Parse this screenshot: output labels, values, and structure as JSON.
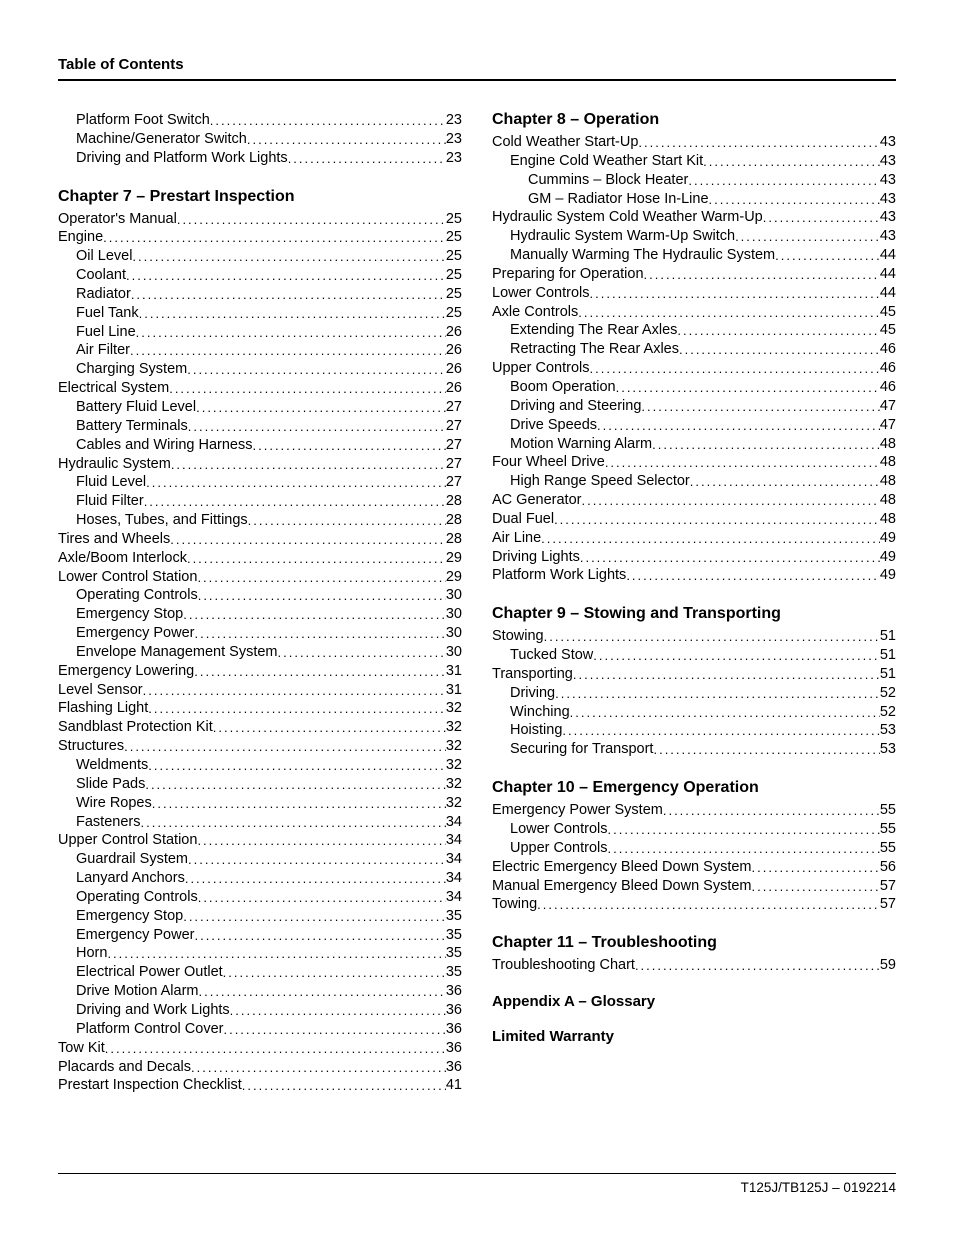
{
  "header": "Table of Contents",
  "footer": "T125J/TB125J – 0192214",
  "left_intro": [
    {
      "label": "Platform Foot Switch",
      "page": "23",
      "indent": 1
    },
    {
      "label": "Machine/Generator Switch",
      "page": "23",
      "indent": 1
    },
    {
      "label": "Driving and Platform Work Lights",
      "page": "23",
      "indent": 1
    }
  ],
  "ch7_title": "Chapter 7 – Prestart Inspection",
  "ch7": [
    {
      "label": "Operator's Manual",
      "page": "25",
      "indent": 0
    },
    {
      "label": "Engine",
      "page": "25",
      "indent": 0
    },
    {
      "label": "Oil Level",
      "page": "25",
      "indent": 1
    },
    {
      "label": "Coolant",
      "page": "25",
      "indent": 1
    },
    {
      "label": "Radiator",
      "page": "25",
      "indent": 1
    },
    {
      "label": "Fuel Tank",
      "page": "25",
      "indent": 1
    },
    {
      "label": "Fuel Line",
      "page": "26",
      "indent": 1
    },
    {
      "label": "Air Filter",
      "page": "26",
      "indent": 1
    },
    {
      "label": "Charging System",
      "page": "26",
      "indent": 1
    },
    {
      "label": "Electrical System",
      "page": "26",
      "indent": 0
    },
    {
      "label": "Battery Fluid Level",
      "page": "27",
      "indent": 1
    },
    {
      "label": "Battery Terminals",
      "page": "27",
      "indent": 1
    },
    {
      "label": "Cables and Wiring Harness",
      "page": "27",
      "indent": 1
    },
    {
      "label": "Hydraulic System",
      "page": "27",
      "indent": 0
    },
    {
      "label": "Fluid Level",
      "page": "27",
      "indent": 1
    },
    {
      "label": "Fluid Filter",
      "page": "28",
      "indent": 1
    },
    {
      "label": "Hoses, Tubes, and Fittings",
      "page": "28",
      "indent": 1
    },
    {
      "label": "Tires and Wheels",
      "page": "28",
      "indent": 0
    },
    {
      "label": "Axle/Boom Interlock",
      "page": "29",
      "indent": 0
    },
    {
      "label": "Lower Control Station",
      "page": "29",
      "indent": 0
    },
    {
      "label": "Operating Controls",
      "page": "30",
      "indent": 1
    },
    {
      "label": "Emergency Stop",
      "page": "30",
      "indent": 1
    },
    {
      "label": "Emergency Power",
      "page": "30",
      "indent": 1
    },
    {
      "label": "Envelope Management System",
      "page": "30",
      "indent": 1
    },
    {
      "label": "Emergency Lowering",
      "page": "31",
      "indent": 0
    },
    {
      "label": "Level Sensor",
      "page": "31",
      "indent": 0
    },
    {
      "label": "Flashing Light",
      "page": "32",
      "indent": 0
    },
    {
      "label": "Sandblast Protection Kit",
      "page": "32",
      "indent": 0
    },
    {
      "label": "Structures",
      "page": "32",
      "indent": 0
    },
    {
      "label": "Weldments",
      "page": "32",
      "indent": 1
    },
    {
      "label": "Slide Pads",
      "page": "32",
      "indent": 1
    },
    {
      "label": "Wire Ropes",
      "page": "32",
      "indent": 1
    },
    {
      "label": "Fasteners",
      "page": "34",
      "indent": 1
    },
    {
      "label": "Upper Control Station",
      "page": "34",
      "indent": 0
    },
    {
      "label": "Guardrail System",
      "page": "34",
      "indent": 1
    },
    {
      "label": "Lanyard Anchors",
      "page": "34",
      "indent": 1
    },
    {
      "label": "Operating Controls",
      "page": "34",
      "indent": 1
    },
    {
      "label": "Emergency Stop",
      "page": "35",
      "indent": 1
    },
    {
      "label": "Emergency Power",
      "page": "35",
      "indent": 1
    },
    {
      "label": "Horn",
      "page": "35",
      "indent": 1
    },
    {
      "label": "Electrical Power Outlet",
      "page": "35",
      "indent": 1
    },
    {
      "label": "Drive Motion Alarm",
      "page": "36",
      "indent": 1
    },
    {
      "label": "Driving and Work Lights",
      "page": "36",
      "indent": 1
    },
    {
      "label": "Platform Control Cover",
      "page": "36",
      "indent": 1
    },
    {
      "label": "Tow Kit",
      "page": "36",
      "indent": 0
    },
    {
      "label": "Placards and Decals",
      "page": "36",
      "indent": 0
    },
    {
      "label": "Prestart Inspection Checklist",
      "page": "41",
      "indent": 0
    }
  ],
  "ch8_title": "Chapter 8 – Operation",
  "ch8": [
    {
      "label": "Cold Weather Start-Up",
      "page": "43",
      "indent": 0
    },
    {
      "label": "Engine Cold Weather Start Kit",
      "page": "43",
      "indent": 1
    },
    {
      "label": "Cummins – Block Heater",
      "page": "43",
      "indent": 2
    },
    {
      "label": "GM – Radiator Hose In-Line",
      "page": "43",
      "indent": 2
    },
    {
      "label": "Hydraulic System Cold Weather Warm-Up",
      "page": "43",
      "indent": 0
    },
    {
      "label": "Hydraulic System Warm-Up Switch",
      "page": "43",
      "indent": 1
    },
    {
      "label": "Manually Warming The Hydraulic System",
      "page": "44",
      "indent": 1
    },
    {
      "label": "Preparing for Operation",
      "page": "44",
      "indent": 0
    },
    {
      "label": "Lower Controls",
      "page": "44",
      "indent": 0
    },
    {
      "label": "Axle Controls",
      "page": "45",
      "indent": 0
    },
    {
      "label": "Extending The Rear Axles",
      "page": "45",
      "indent": 1
    },
    {
      "label": "Retracting The Rear Axles",
      "page": "46",
      "indent": 1
    },
    {
      "label": "Upper Controls",
      "page": "46",
      "indent": 0
    },
    {
      "label": "Boom Operation",
      "page": "46",
      "indent": 1
    },
    {
      "label": "Driving and Steering",
      "page": "47",
      "indent": 1
    },
    {
      "label": "Drive Speeds",
      "page": "47",
      "indent": 1
    },
    {
      "label": "Motion Warning Alarm",
      "page": "48",
      "indent": 1
    },
    {
      "label": "Four Wheel Drive",
      "page": "48",
      "indent": 0
    },
    {
      "label": "High Range Speed Selector",
      "page": "48",
      "indent": 1
    },
    {
      "label": "AC Generator",
      "page": "48",
      "indent": 0
    },
    {
      "label": "Dual Fuel",
      "page": "48",
      "indent": 0
    },
    {
      "label": "Air Line",
      "page": "49",
      "indent": 0
    },
    {
      "label": "Driving Lights",
      "page": "49",
      "indent": 0
    },
    {
      "label": "Platform Work Lights",
      "page": "49",
      "indent": 0
    }
  ],
  "ch9_title": "Chapter 9 – Stowing and Transporting",
  "ch9": [
    {
      "label": "Stowing",
      "page": "51",
      "indent": 0
    },
    {
      "label": "Tucked Stow",
      "page": "51",
      "indent": 1
    },
    {
      "label": "Transporting",
      "page": "51",
      "indent": 0
    },
    {
      "label": "Driving",
      "page": "52",
      "indent": 1
    },
    {
      "label": "Winching",
      "page": "52",
      "indent": 1
    },
    {
      "label": "Hoisting",
      "page": "53",
      "indent": 1
    },
    {
      "label": "Securing for Transport",
      "page": "53",
      "indent": 1
    }
  ],
  "ch10_title": "Chapter 10 – Emergency Operation",
  "ch10": [
    {
      "label": "Emergency Power System",
      "page": "55",
      "indent": 0
    },
    {
      "label": "Lower Controls",
      "page": "55",
      "indent": 1
    },
    {
      "label": "Upper Controls",
      "page": "55",
      "indent": 1
    },
    {
      "label": "Electric Emergency Bleed Down System",
      "page": "56",
      "indent": 0
    },
    {
      "label": "Manual Emergency Bleed Down System",
      "page": "57",
      "indent": 0
    },
    {
      "label": "Towing",
      "page": "57",
      "indent": 0
    }
  ],
  "ch11_title": "Chapter 11 – Troubleshooting",
  "ch11": [
    {
      "label": "Troubleshooting Chart",
      "page": "59",
      "indent": 0
    }
  ],
  "appendix": "Appendix A – Glossary",
  "warranty": "Limited Warranty"
}
